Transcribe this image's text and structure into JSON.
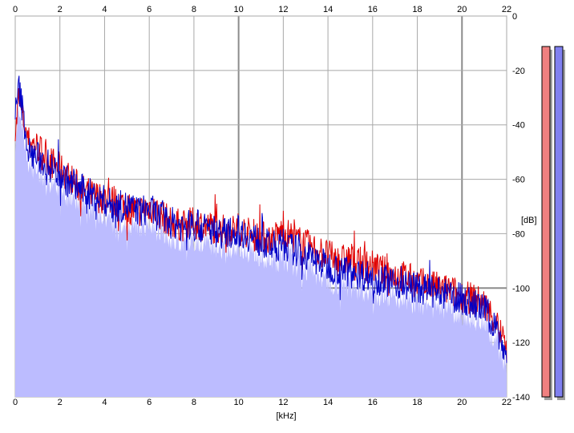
{
  "chart_data": {
    "type": "area",
    "xlabel": "[kHz]",
    "ylabel": "[dB]",
    "xlim": [
      0,
      22
    ],
    "ylim": [
      -140,
      0
    ],
    "x_ticks": [
      0,
      2,
      4,
      6,
      8,
      10,
      12,
      14,
      16,
      18,
      20,
      22
    ],
    "y_ticks": [
      0,
      -20,
      -40,
      -60,
      -80,
      -100,
      -120,
      -140
    ],
    "grid": true,
    "colors": {
      "red_series": "#e00000",
      "blue_series": "#0000c8",
      "fill": "#bcbcff",
      "red_meter": "#f08080",
      "blue_meter": "#8080f0"
    },
    "series": [
      {
        "color": "#e00000",
        "x": [
          0.05,
          0.15,
          0.3,
          0.6,
          1.0,
          1.5,
          2.0,
          2.5,
          3.0,
          3.5,
          4.0,
          4.5,
          5.0,
          5.5,
          6.0,
          6.5,
          7.0,
          7.5,
          8.0,
          8.5,
          9.0,
          9.5,
          10.0,
          10.5,
          11.0,
          11.5,
          12.0,
          12.5,
          13.0,
          13.5,
          14.0,
          14.5,
          15.0,
          15.5,
          16.0,
          16.5,
          17.0,
          17.5,
          18.0,
          18.5,
          19.0,
          19.5,
          20.0,
          20.5,
          21.0,
          21.5,
          22.0
        ],
        "values": [
          -40,
          -30,
          -36,
          -46,
          -48,
          -53,
          -56,
          -60,
          -64,
          -66,
          -67,
          -68,
          -70,
          -72,
          -70,
          -73,
          -76,
          -77,
          -76,
          -77,
          -78,
          -79,
          -78,
          -80,
          -81,
          -82,
          -79,
          -82,
          -84,
          -86,
          -88,
          -90,
          -89,
          -91,
          -92,
          -94,
          -95,
          -96,
          -98,
          -99,
          -100,
          -101,
          -103,
          -104,
          -106,
          -112,
          -122
        ]
      },
      {
        "color": "#0000c8",
        "x": [
          0.05,
          0.15,
          0.3,
          0.6,
          1.0,
          1.5,
          2.0,
          2.5,
          3.0,
          3.5,
          4.0,
          4.5,
          5.0,
          5.5,
          6.0,
          6.5,
          7.0,
          7.5,
          8.0,
          8.5,
          9.0,
          9.5,
          10.0,
          10.5,
          11.0,
          11.5,
          12.0,
          12.5,
          13.0,
          13.5,
          14.0,
          14.5,
          15.0,
          15.5,
          16.0,
          16.5,
          17.0,
          17.5,
          18.0,
          18.5,
          19.0,
          19.5,
          20.0,
          20.5,
          21.0,
          21.5,
          22.0
        ],
        "values": [
          -35,
          -26,
          -33,
          -50,
          -52,
          -55,
          -58,
          -62,
          -64,
          -66,
          -68,
          -70,
          -70,
          -72,
          -71,
          -74,
          -76,
          -77,
          -77,
          -78,
          -79,
          -80,
          -79,
          -81,
          -83,
          -85,
          -84,
          -86,
          -88,
          -90,
          -92,
          -93,
          -94,
          -95,
          -96,
          -97,
          -98,
          -99,
          -100,
          -101,
          -102,
          -103,
          -104,
          -106,
          -108,
          -114,
          -125
        ]
      }
    ],
    "meters": [
      {
        "color": "#f08080",
        "value_db": -12
      },
      {
        "color": "#8080f0",
        "value_db": -12
      }
    ]
  }
}
